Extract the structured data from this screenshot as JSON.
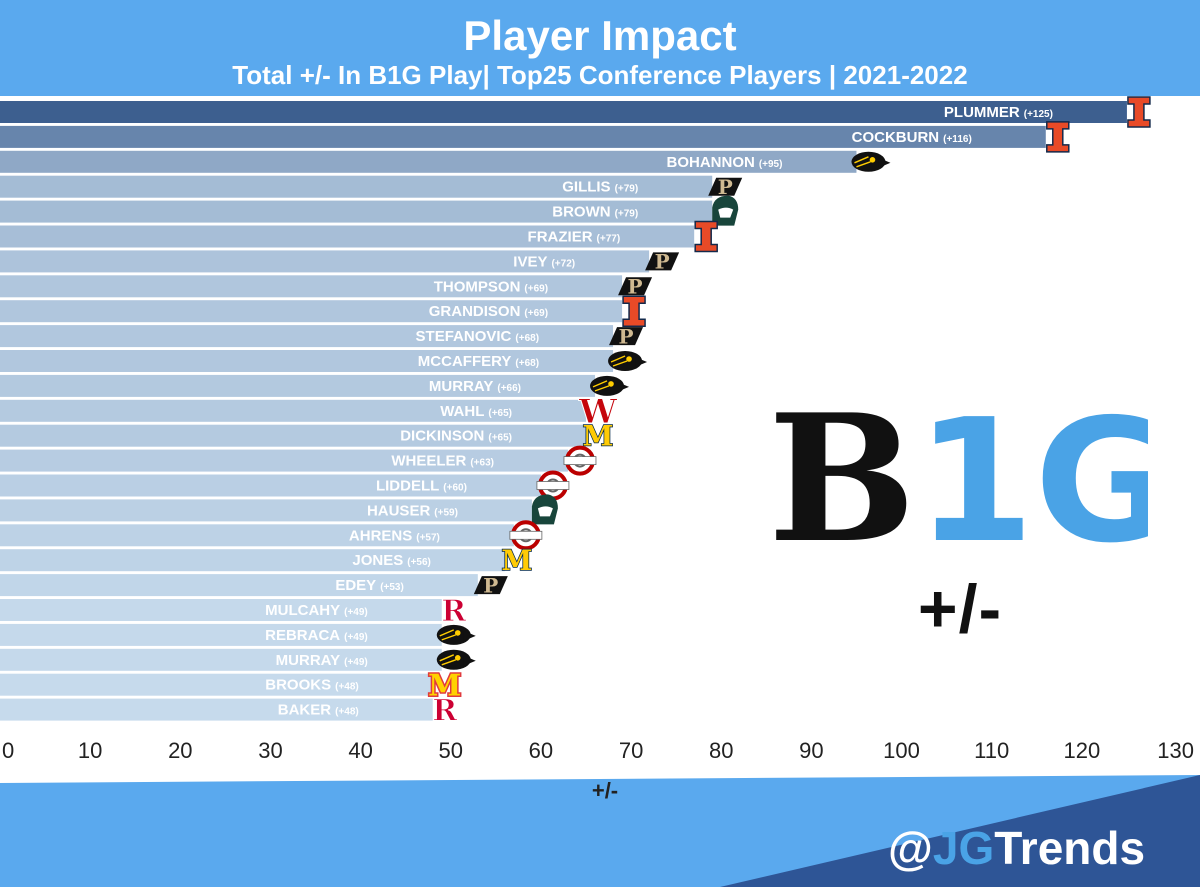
{
  "title": "Player Impact",
  "subtitle": "Total +/- In B1G Play| Top25 Conference Players | 2021-2022",
  "chart_data": {
    "type": "bar",
    "orientation": "horizontal",
    "xlabel": "+/-",
    "xlim": [
      0,
      130
    ],
    "xticks": [
      0,
      10,
      20,
      30,
      40,
      50,
      60,
      70,
      80,
      90,
      100,
      110,
      120,
      130
    ],
    "grid": false,
    "categories": [
      "PLUMMER",
      "COCKBURN",
      "BOHANNON",
      "GILLIS",
      "BROWN",
      "FRAZIER",
      "IVEY",
      "THOMPSON",
      "GRANDISON",
      "STEFANOVIC",
      "MCCAFFERY",
      "MURRAY",
      "WAHL",
      "DICKINSON",
      "WHEELER",
      "LIDDELL",
      "HAUSER",
      "AHRENS",
      "JONES",
      "EDEY",
      "MULCAHY",
      "REBRACA",
      "MURRAY",
      "BROOKS",
      "BAKER"
    ],
    "values": [
      125,
      116,
      95,
      79,
      79,
      77,
      72,
      69,
      69,
      68,
      68,
      66,
      65,
      65,
      63,
      60,
      59,
      57,
      56,
      53,
      49,
      49,
      49,
      48,
      48
    ],
    "value_labels": [
      "(+125)",
      "(+116)",
      "(+95)",
      "(+79)",
      "(+79)",
      "(+77)",
      "(+72)",
      "(+69)",
      "(+69)",
      "(+68)",
      "(+68)",
      "(+66)",
      "(+65)",
      "(+65)",
      "(+63)",
      "(+60)",
      "(+59)",
      "(+57)",
      "(+56)",
      "(+53)",
      "(+49)",
      "(+49)",
      "(+49)",
      "(+48)",
      "(+48)"
    ],
    "team_logos": [
      "illinois",
      "illinois",
      "iowa",
      "purdue",
      "michigan-state",
      "illinois",
      "purdue",
      "purdue",
      "illinois",
      "purdue",
      "iowa",
      "iowa",
      "wisconsin",
      "michigan",
      "ohio-state",
      "ohio-state",
      "michigan-state",
      "ohio-state",
      "michigan",
      "purdue",
      "rutgers",
      "iowa",
      "iowa",
      "maryland",
      "rutgers"
    ]
  },
  "logo": {
    "b": "B",
    "num": "1G",
    "sub": "+/-"
  },
  "handle": {
    "at": "@",
    "jg": "JG",
    "rest": "Trends"
  },
  "colors": {
    "header": "#5aa9ee",
    "bar_dark": "#3d5f8f",
    "bar_light": "#c6daec",
    "illinois": "#e84a27",
    "iowa": "#111111",
    "purdue": "#cfb991",
    "michigan_state": "#18453b",
    "michigan": "#ffcb05",
    "ohio_state": "#bb0000",
    "wisconsin": "#c5050c",
    "rutgers": "#cc0033",
    "maryland": "#e03a3e",
    "footer_light": "#5aa9ee",
    "footer_dark": "#2e5596"
  }
}
